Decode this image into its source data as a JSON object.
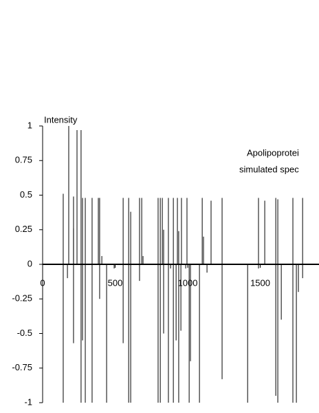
{
  "chart_data": {
    "type": "stick",
    "y_label": "Intensity",
    "annotation": [
      "Apolipoprotei",
      "simulated spec"
    ],
    "color": "#000000",
    "xlim": [
      0,
      1905
    ],
    "xticks": [
      0,
      500,
      1000,
      1500
    ],
    "ylim": [
      -1,
      1
    ],
    "yticks": [
      -1,
      -0.75,
      -0.5,
      -0.25,
      0,
      0.25,
      0.5,
      0.75,
      1
    ],
    "x": [
      142,
      142,
      171,
      180,
      213,
      213,
      213,
      237,
      265,
      265,
      275,
      275,
      294,
      294,
      341,
      341,
      384,
      393,
      393,
      408,
      441,
      493,
      555,
      555,
      593,
      593,
      607,
      607,
      668,
      668,
      683,
      692,
      796,
      796,
      811,
      811,
      825,
      834,
      834,
      867,
      867,
      882,
      901,
      901,
      920,
      929,
      938,
      938,
      953,
      957,
      986,
      995,
      1010,
      1019,
      1081,
      1100,
      1109,
      1133,
      1161,
      1237,
      1237,
      1413,
      1488,
      1488,
      1531,
      1607,
      1607,
      1621,
      1621,
      1645,
      1725,
      1725,
      1749,
      1763,
      1792,
      1792
    ],
    "values": [
      0.51,
      -1,
      -0.1,
      1,
      0.26,
      0.49,
      -0.57,
      0.97,
      0.97,
      -1,
      0.48,
      -0.55,
      0.48,
      -1,
      0.48,
      -1,
      0.48,
      0.48,
      -0.25,
      0.06,
      -1,
      -0.03,
      0.48,
      -0.57,
      0.48,
      -1,
      0.38,
      -1,
      0.48,
      -0.12,
      0.48,
      0.06,
      0.48,
      -1,
      0.48,
      -1,
      0.48,
      0.25,
      -0.5,
      0.48,
      -1,
      -0.03,
      0.48,
      -1,
      -0.55,
      0.48,
      0.24,
      -1,
      -0.48,
      0.48,
      -0.03,
      0.48,
      -1,
      -0.7,
      -1,
      0.48,
      0.2,
      -0.06,
      0.46,
      0.48,
      -0.83,
      -1,
      0.48,
      -0.03,
      0.46,
      0.48,
      -0.95,
      0.47,
      -1,
      -0.4,
      0.48,
      -1,
      -1,
      -0.2,
      0.48,
      -0.1
    ]
  }
}
